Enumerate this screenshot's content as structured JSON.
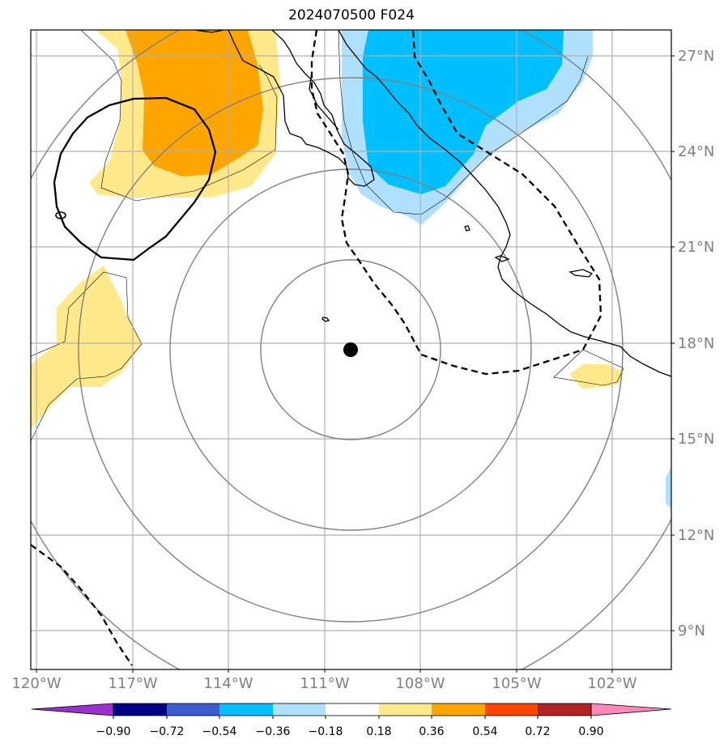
{
  "title": "2024070500 F024",
  "lat_labels": [
    "27°N",
    "24°N",
    "21°N",
    "18°N",
    "15°N",
    "12°N",
    "9°N"
  ],
  "lon_labels": [
    "120°W",
    "117°W",
    "114°W",
    "111°W",
    "108°W",
    "105°W",
    "102°W"
  ],
  "colorbar": {
    "ticks": [
      "−0.90",
      "−0.72",
      "−0.54",
      "−0.36",
      "−0.18",
      "0.18",
      "0.36",
      "0.54",
      "0.72",
      "0.90"
    ],
    "colors": [
      "#9932cc",
      "#00008b",
      "#3b5bcf",
      "#00bfff",
      "#b0e0ff",
      "#ffffff",
      "#ffe98a",
      "#ffa500",
      "#ff4500",
      "#b22222",
      "#ff88bb"
    ]
  },
  "map": {
    "extent": {
      "lon_min": -120,
      "lon_max": -100,
      "lat_min": 8,
      "lat_max": 28
    },
    "center_marker": {
      "lon": -110.8,
      "lat": 17.8
    },
    "positive_fill_colors": [
      "#ffe98a",
      "#ffa500"
    ],
    "negative_fill_colors": [
      "#b0e0ff",
      "#00bfff"
    ]
  }
}
